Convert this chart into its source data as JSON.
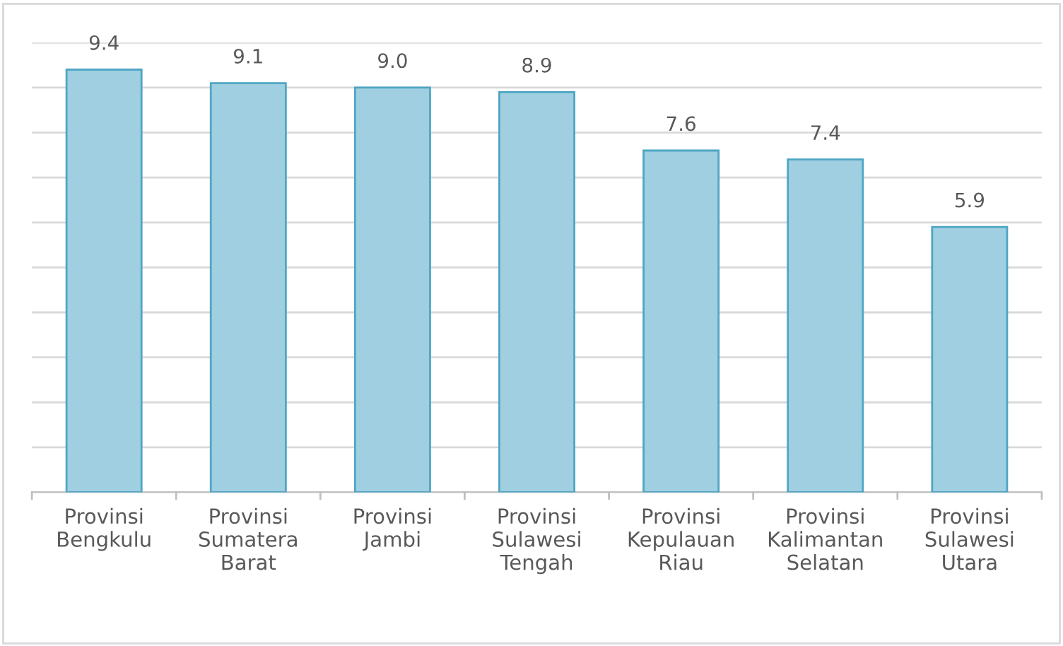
{
  "chart_data": {
    "type": "bar",
    "categories": [
      "Provinsi\nBengkulu",
      "Provinsi\nSumatera\nBarat",
      "Provinsi\nJambi",
      "Provinsi\nSulawesi\nTengah",
      "Provinsi\nKepulauan\nRiau",
      "Provinsi\nKalimantan\nSelatan",
      "Provinsi\nSulawesi\nUtara"
    ],
    "values": [
      9.4,
      9.1,
      9.0,
      8.9,
      7.6,
      7.4,
      5.9
    ],
    "color": "#9fcfe0",
    "ylim": [
      0,
      10
    ],
    "value_labels": [
      "9.4",
      "9.1",
      "9.0",
      "8.9",
      "7.6",
      "7.4",
      "5.9"
    ],
    "yticks": [
      {
        "value": 0,
        "label": null
      },
      {
        "value": 1,
        "label": null
      },
      {
        "value": 2,
        "label": null
      },
      {
        "value": 3,
        "label": null
      },
      {
        "value": 4,
        "label": null
      },
      {
        "value": 5,
        "label": null
      },
      {
        "value": 6,
        "label": null
      },
      {
        "value": 7,
        "label": null
      },
      {
        "value": 8,
        "label": null
      },
      {
        "value": 9,
        "label": null
      },
      {
        "value": 10,
        "label": null
      }
    ],
    "grid": "y",
    "tick_labels": "x"
  }
}
